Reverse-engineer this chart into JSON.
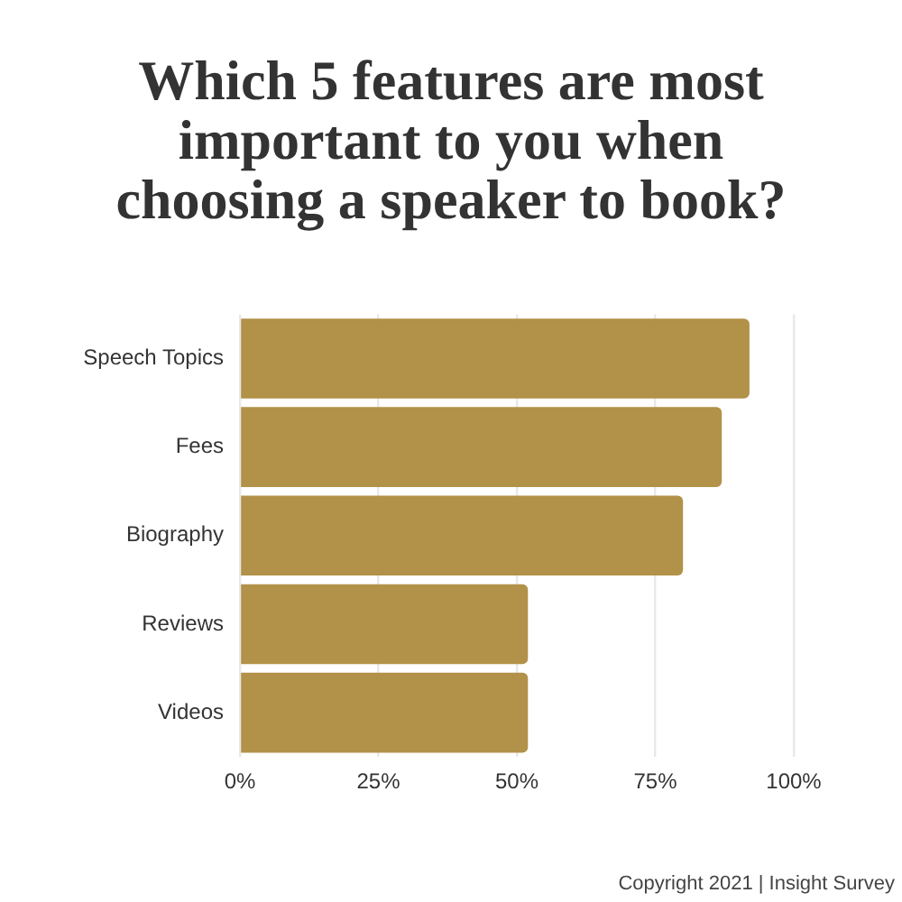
{
  "chart_data": {
    "type": "bar",
    "orientation": "horizontal",
    "title": "Which 5 features are most important to you when choosing a speaker to book?",
    "categories": [
      "Speech Topics",
      "Fees",
      "Biography",
      "Reviews",
      "Videos"
    ],
    "values": [
      92,
      87,
      80,
      52,
      52
    ],
    "color": "#b29148",
    "xlim": [
      0,
      100
    ],
    "xticks": [
      {
        "value": 0,
        "label": "0%"
      },
      {
        "value": 25,
        "label": "25%"
      },
      {
        "value": 50,
        "label": "50%"
      },
      {
        "value": 75,
        "label": "75%"
      },
      {
        "value": 100,
        "label": "100%"
      }
    ],
    "grid": "x",
    "annotations": [
      "Copyright 2021 | Insight Survey"
    ]
  }
}
